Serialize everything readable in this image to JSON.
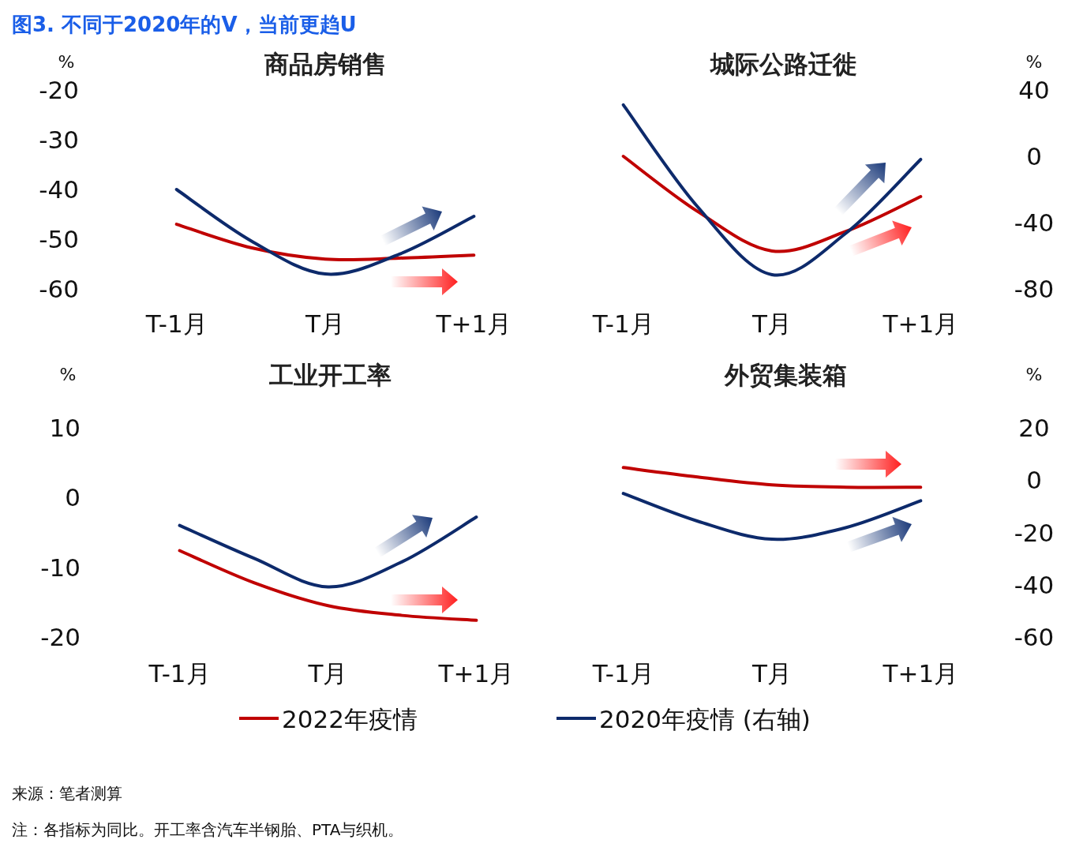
{
  "chart_data": [
    {
      "type": "line",
      "title": "商品房销售",
      "ylabel": "%",
      "categories": [
        "T-1月",
        null,
        "T月",
        null,
        "T+1月"
      ],
      "ylim": [
        -60,
        -20
      ],
      "yticks": [
        -20,
        -30,
        -40,
        -50,
        -60
      ],
      "grid": false,
      "legend": "bottom",
      "marker": "none",
      "line_style": "solid",
      "annotations": [
        "图3. 不同于2020年的V，当前更趋U",
        "来源：笔者测算",
        "注：各指标为同比。开工率含汽车半钢胎、PTA与织机。"
      ],
      "series": [
        {
          "name": "2022年疫情",
          "color": "#c00000",
          "values": [
            -47.0,
            -51.7,
            -54.0,
            -53.8,
            -53.2
          ]
        },
        {
          "name": "2020年疫情 (右轴)",
          "color": "#0d2a6b",
          "values": [
            -40.0,
            -50.3,
            -57.0,
            -53.0,
            -45.4
          ]
        }
      ]
    },
    {
      "type": "line",
      "title": "城际公路迁徙",
      "y2label": "%",
      "categories": [
        "T-1月",
        null,
        "T月",
        null,
        "T+1月"
      ],
      "y2lim": [
        -80,
        40
      ],
      "y2ticks": [
        40,
        0,
        -40,
        -80
      ],
      "grid": false,
      "marker": "none",
      "line_style": "solid",
      "series": [
        {
          "color": "#c00000",
          "axis": "y2",
          "values": [
            0,
            -33.3,
            -57.1,
            -45.2,
            -24.3
          ]
        },
        {
          "color": "#0d2a6b",
          "axis": "y2",
          "values": [
            31,
            -30.5,
            -71.4,
            -46.2,
            -1.9
          ]
        }
      ]
    },
    {
      "type": "line",
      "title": "工业开工率",
      "ylabel": "%",
      "categories": [
        "T-1月",
        null,
        "T月",
        null,
        "T+1月"
      ],
      "ylim": [
        -20,
        10
      ],
      "yticks": [
        10,
        0,
        -10,
        -20
      ],
      "grid": false,
      "marker": "none",
      "line_style": "solid",
      "series": [
        {
          "color": "#c00000",
          "values": [
            -7.6,
            -12.2,
            -15.5,
            -16.9,
            -17.6
          ]
        },
        {
          "color": "#0d2a6b",
          "values": [
            -4.0,
            -8.7,
            -12.8,
            -9.2,
            -2.8
          ]
        }
      ]
    },
    {
      "type": "line",
      "title": "外贸集装箱",
      "y2label": "%",
      "categories": [
        "T-1月",
        null,
        "T月",
        null,
        "T+1月"
      ],
      "y2lim": [
        -60,
        20
      ],
      "y2ticks": [
        20,
        0,
        -20,
        -40,
        -60
      ],
      "grid": false,
      "marker": "none",
      "line_style": "solid",
      "series": [
        {
          "color": "#c00000",
          "axis": "y2",
          "values": [
            4.8,
            1.2,
            -1.8,
            -2.7,
            -2.7
          ]
        },
        {
          "color": "#0d2a6b",
          "axis": "y2",
          "values": [
            -5.1,
            -15.7,
            -22.6,
            -18.1,
            -7.9
          ]
        }
      ]
    }
  ]
}
